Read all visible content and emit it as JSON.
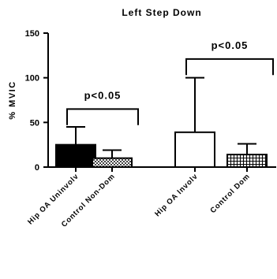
{
  "chart_data": {
    "type": "bar",
    "title": "Left Step Down",
    "ylabel": "% MVIC",
    "xlabel": "",
    "ylim": [
      0,
      150
    ],
    "yticks": [
      0,
      50,
      100,
      150
    ],
    "grid": false,
    "categories": [
      "Hip OA Uninvolv",
      "Control Non-Dom",
      "Hip OA Involv",
      "Control Dom"
    ],
    "values": [
      25,
      10,
      39,
      14
    ],
    "error_plus": [
      20,
      9,
      61,
      12
    ],
    "fills": [
      "solid-black",
      "dense-check",
      "white",
      "grid"
    ],
    "annotations": [
      {
        "text": "p<0.05",
        "between": [
          0,
          1
        ],
        "bracket_y": 47,
        "bracket_top": 62
      },
      {
        "text": "p<0.05",
        "between": [
          2,
          3
        ],
        "bracket_y": 103,
        "bracket_top": 118
      }
    ]
  },
  "colors": {
    "axis": "#000000",
    "background": "#ffffff"
  }
}
